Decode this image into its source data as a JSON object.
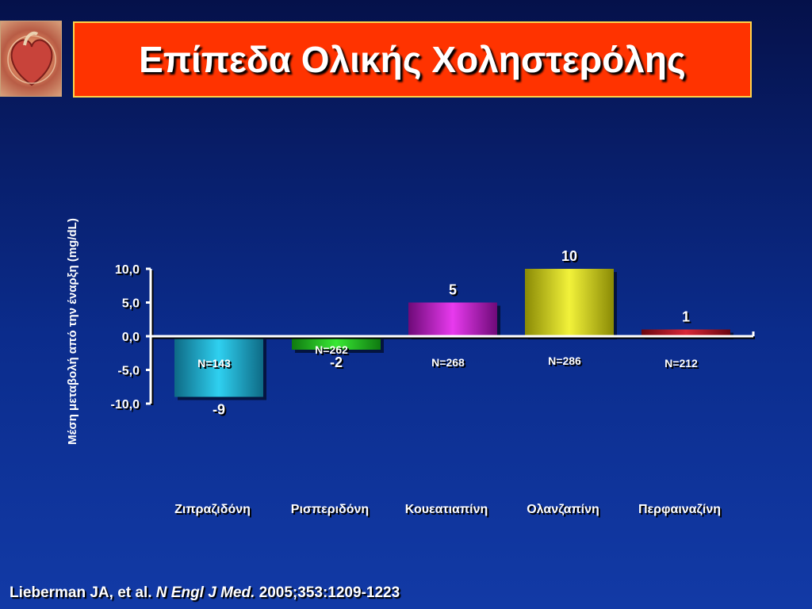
{
  "slide": {
    "title": "Επίπεδα Ολικής Χολη­στερόλης",
    "citation": {
      "authors": "Lieberman JA, et al.",
      "journal": "N Engl J Med.",
      "ref": "2005;353:1209-1223"
    }
  },
  "colors": {
    "background": "#0b2c8c",
    "title_box": "#ff3300",
    "title_border": "#ffd34a"
  },
  "chart_data": {
    "type": "bar",
    "title": "",
    "xlabel": "",
    "ylabel": "Μέση  μεταβολή από την έναρξη (mg/dL)",
    "ylim": [
      -10,
      10
    ],
    "yticks": [
      10,
      5,
      0,
      -5,
      -10
    ],
    "ytick_labels": [
      "10,0",
      "5,0",
      "0,0",
      "-5,0",
      "-10,0"
    ],
    "grid": false,
    "legend": "none",
    "categories": [
      "Ζιπραζιδόνη",
      "Ρισπεριδόνη",
      "Κουεατιαπίνη",
      "Ολανζαπίνη",
      "Περφαιναζίνη"
    ],
    "values": [
      -9,
      -2,
      5,
      10,
      1
    ],
    "value_labels": [
      "-9",
      "-2",
      "5",
      "10",
      "1"
    ],
    "n_labels": [
      "N=143",
      "N=262",
      "N=268",
      "N=286",
      "N=212"
    ],
    "bar_colors": [
      "#1ab0d6",
      "#22c21e",
      "#c01cc6",
      "#d4d40e",
      "#b0101c"
    ]
  }
}
